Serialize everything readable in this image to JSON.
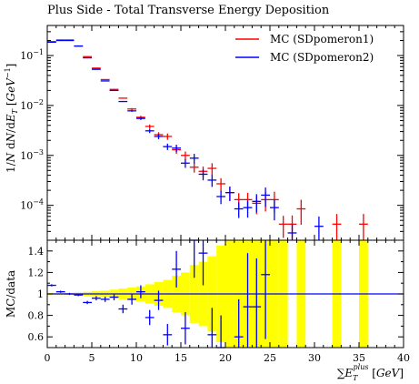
{
  "chart_data": [
    {
      "type": "scatter",
      "title": "Plus Side - Total Transverse Energy Deposition",
      "ylabel": "1/N dN/dE_T [GeV^-1]",
      "ylabel_parts": [
        "1/",
        "N",
        " d",
        "N",
        "/d",
        "E",
        "T",
        " [",
        "GeV",
        "−1",
        "]"
      ],
      "yscale": "log",
      "ylim": [
        2e-05,
        0.4
      ],
      "xlim": [
        0,
        40
      ],
      "ytick_labels": [
        {
          "value": 0.1,
          "base": "10",
          "exp": "−1"
        },
        {
          "value": 0.01,
          "base": "10",
          "exp": "−2"
        },
        {
          "value": 0.001,
          "base": "10",
          "exp": "−3"
        },
        {
          "value": 0.0001,
          "base": "10",
          "exp": "−4"
        }
      ],
      "legend_position": "top-right",
      "series": [
        {
          "name": "MC (SDpomeron1)",
          "color": "#ff0000",
          "points": [
            {
              "xlo": 0,
              "xhi": 1,
              "y": 0.19
            },
            {
              "xlo": 1,
              "xhi": 2,
              "y": 0.205
            },
            {
              "xlo": 2,
              "xhi": 3,
              "y": 0.205
            },
            {
              "xlo": 3,
              "xhi": 4,
              "y": 0.155
            },
            {
              "xlo": 4,
              "xhi": 5,
              "y": 0.095
            },
            {
              "xlo": 5,
              "xhi": 6,
              "y": 0.056
            },
            {
              "xlo": 6,
              "xhi": 7,
              "y": 0.033
            },
            {
              "xlo": 7,
              "xhi": 8,
              "y": 0.021
            },
            {
              "xlo": 8,
              "xhi": 9,
              "y": 0.014
            },
            {
              "xlo": 9,
              "xhi": 10,
              "y": 0.0085
            },
            {
              "xlo": 10,
              "xhi": 11,
              "y": 0.0058
            },
            {
              "xlo": 11,
              "xhi": 12,
              "y": 0.0038
            },
            {
              "xlo": 12,
              "xhi": 13,
              "y": 0.0026
            },
            {
              "xlo": 13,
              "xhi": 14,
              "y": 0.0024
            },
            {
              "xlo": 14,
              "xhi": 15,
              "y": 0.0013
            },
            {
              "xlo": 15,
              "xhi": 16,
              "y": 0.001
            },
            {
              "xlo": 16,
              "xhi": 17,
              "y": 0.00058
            },
            {
              "xlo": 17,
              "xhi": 18,
              "y": 0.00048
            },
            {
              "xlo": 18,
              "xhi": 19,
              "y": 0.00055
            },
            {
              "xlo": 19,
              "xhi": 20,
              "y": 0.00027
            },
            {
              "xlo": 20,
              "xhi": 21,
              "y": 0.00018
            },
            {
              "xlo": 21,
              "xhi": 22,
              "y": 0.00013
            },
            {
              "xlo": 22,
              "xhi": 23,
              "y": 0.00013
            },
            {
              "xlo": 23,
              "xhi": 24,
              "y": 0.00011
            },
            {
              "xlo": 24,
              "xhi": 25,
              "y": 0.00013
            },
            {
              "xlo": 25,
              "xhi": 26,
              "y": 0.00013
            },
            {
              "xlo": 26,
              "xhi": 27,
              "y": 4.2e-05
            },
            {
              "xlo": 27,
              "xhi": 28,
              "y": 4.2e-05
            },
            {
              "xlo": 28,
              "xhi": 29,
              "y": 8.5e-05
            },
            {
              "xlo": 32,
              "xhi": 33,
              "y": 4.2e-05
            },
            {
              "xlo": 35,
              "xhi": 36,
              "y": 4.2e-05
            }
          ]
        },
        {
          "name": "MC (SDpomeron2)",
          "color": "#0000ff",
          "points": [
            {
              "xlo": 0,
              "xhi": 1,
              "y": 0.185
            },
            {
              "xlo": 1,
              "xhi": 2,
              "y": 0.2
            },
            {
              "xlo": 2,
              "xhi": 3,
              "y": 0.2
            },
            {
              "xlo": 3,
              "xhi": 4,
              "y": 0.155
            },
            {
              "xlo": 4,
              "xhi": 5,
              "y": 0.09
            },
            {
              "xlo": 5,
              "xhi": 6,
              "y": 0.053
            },
            {
              "xlo": 6,
              "xhi": 7,
              "y": 0.031
            },
            {
              "xlo": 7,
              "xhi": 8,
              "y": 0.02
            },
            {
              "xlo": 8,
              "xhi": 9,
              "y": 0.012
            },
            {
              "xlo": 9,
              "xhi": 10,
              "y": 0.0078
            },
            {
              "xlo": 10,
              "xhi": 11,
              "y": 0.0055
            },
            {
              "xlo": 11,
              "xhi": 12,
              "y": 0.0031
            },
            {
              "xlo": 12,
              "xhi": 13,
              "y": 0.0024
            },
            {
              "xlo": 13,
              "xhi": 14,
              "y": 0.0015
            },
            {
              "xlo": 14,
              "xhi": 15,
              "y": 0.0014
            },
            {
              "xlo": 15,
              "xhi": 16,
              "y": 0.0007
            },
            {
              "xlo": 16,
              "xhi": 17,
              "y": 0.00088
            },
            {
              "xlo": 17,
              "xhi": 18,
              "y": 0.00042
            },
            {
              "xlo": 18,
              "xhi": 19,
              "y": 0.00032
            },
            {
              "xlo": 19,
              "xhi": 20,
              "y": 0.00015
            },
            {
              "xlo": 20,
              "xhi": 21,
              "y": 0.00018
            },
            {
              "xlo": 21,
              "xhi": 22,
              "y": 8.5e-05
            },
            {
              "xlo": 22,
              "xhi": 23,
              "y": 9e-05
            },
            {
              "xlo": 23,
              "xhi": 24,
              "y": 0.00012
            },
            {
              "xlo": 24,
              "xhi": 25,
              "y": 0.00016
            },
            {
              "xlo": 25,
              "xhi": 26,
              "y": 9e-05
            },
            {
              "xlo": 27,
              "xhi": 28,
              "y": 2.8e-05
            },
            {
              "xlo": 30,
              "xhi": 31,
              "y": 3.8e-05
            }
          ]
        }
      ]
    },
    {
      "type": "scatter",
      "ylabel": "MC/data",
      "xlabel": "∑E_T^plus [GeV]",
      "xlabel_parts": [
        "∑",
        "E",
        "T",
        "plus",
        " [",
        "GeV",
        "]"
      ],
      "xlim": [
        0,
        40
      ],
      "ylim": [
        0.5,
        1.5
      ],
      "xticks": [
        0,
        5,
        10,
        15,
        20,
        25,
        30,
        35,
        40
      ],
      "yticks": [
        0.6,
        0.8,
        1,
        1.2,
        1.4
      ],
      "ytick_labels": [
        "0.6",
        "0.8",
        "1",
        "1.2",
        "1.4"
      ],
      "reference_line": 1,
      "uncertainty_band": {
        "color": "#ffff00",
        "bins": [
          {
            "xlo": 0,
            "xhi": 1,
            "hw": 0.01
          },
          {
            "xlo": 1,
            "xhi": 2,
            "hw": 0.01
          },
          {
            "xlo": 2,
            "xhi": 3,
            "hw": 0.01
          },
          {
            "xlo": 3,
            "xhi": 4,
            "hw": 0.015
          },
          {
            "xlo": 4,
            "xhi": 5,
            "hw": 0.02
          },
          {
            "xlo": 5,
            "xhi": 6,
            "hw": 0.025
          },
          {
            "xlo": 6,
            "xhi": 7,
            "hw": 0.03
          },
          {
            "xlo": 7,
            "xhi": 8,
            "hw": 0.04
          },
          {
            "xlo": 8,
            "xhi": 9,
            "hw": 0.05
          },
          {
            "xlo": 9,
            "xhi": 10,
            "hw": 0.06
          },
          {
            "xlo": 10,
            "xhi": 11,
            "hw": 0.07
          },
          {
            "xlo": 11,
            "xhi": 12,
            "hw": 0.09
          },
          {
            "xlo": 12,
            "xhi": 13,
            "hw": 0.11
          },
          {
            "xlo": 13,
            "xhi": 14,
            "hw": 0.13
          },
          {
            "xlo": 14,
            "xhi": 15,
            "hw": 0.17
          },
          {
            "xlo": 15,
            "xhi": 16,
            "hw": 0.2
          },
          {
            "xlo": 16,
            "xhi": 17,
            "hw": 0.27
          },
          {
            "xlo": 17,
            "xhi": 18,
            "hw": 0.3
          },
          {
            "xlo": 18,
            "xhi": 19,
            "hw": 0.35
          },
          {
            "xlo": 19,
            "xhi": 20,
            "hw": 0.45
          },
          {
            "xlo": 20,
            "xhi": 21,
            "hw": 0.5
          },
          {
            "xlo": 21,
            "xhi": 22,
            "hw": 0.55
          },
          {
            "xlo": 22,
            "xhi": 23,
            "hw": 0.6
          },
          {
            "xlo": 23,
            "xhi": 24,
            "hw": 0.6
          },
          {
            "xlo": 24,
            "xhi": 25,
            "hw": 0.6
          },
          {
            "xlo": 25,
            "xhi": 26,
            "hw": 0.6
          },
          {
            "xlo": 26,
            "xhi": 27,
            "hw": 0.6
          },
          {
            "xlo": 28,
            "xhi": 29,
            "hw": 0.6
          },
          {
            "xlo": 32,
            "xhi": 33,
            "hw": 0.6
          },
          {
            "xlo": 35,
            "xhi": 36,
            "hw": 0.6
          }
        ]
      },
      "series": [
        {
          "name": "MC (SDpomeron2)",
          "color": "#0000ff",
          "points": [
            {
              "x": 0.5,
              "y": 1.08,
              "yerr": 0.01
            },
            {
              "x": 1.5,
              "y": 1.02,
              "yerr": 0.01
            },
            {
              "x": 2.5,
              "y": 1.0,
              "yerr": 0.01
            },
            {
              "x": 3.5,
              "y": 0.99,
              "yerr": 0.01
            },
            {
              "x": 4.5,
              "y": 0.92,
              "yerr": 0.015
            },
            {
              "x": 5.5,
              "y": 0.96,
              "yerr": 0.02
            },
            {
              "x": 6.5,
              "y": 0.95,
              "yerr": 0.025
            },
            {
              "x": 7.5,
              "y": 0.97,
              "yerr": 0.03
            },
            {
              "x": 8.5,
              "y": 0.86,
              "yerr": 0.04
            },
            {
              "x": 9.5,
              "y": 0.95,
              "yerr": 0.05
            },
            {
              "x": 10.5,
              "y": 1.02,
              "yerr": 0.06
            },
            {
              "x": 11.5,
              "y": 0.78,
              "yerr": 0.07
            },
            {
              "x": 12.5,
              "y": 0.94,
              "yerr": 0.09
            },
            {
              "x": 13.5,
              "y": 0.62,
              "yerr": 0.1
            },
            {
              "x": 14.5,
              "y": 1.23,
              "yerr": 0.17
            },
            {
              "x": 15.5,
              "y": 0.68,
              "yerr": 0.15
            },
            {
              "x": 16.5,
              "y": 1.5,
              "yerr": 0.35
            },
            {
              "x": 17.5,
              "y": 1.38,
              "yerr": 0.3
            },
            {
              "x": 18.5,
              "y": 0.62,
              "yerr": 0.25
            },
            {
              "x": 19.5,
              "y": 0.5,
              "yerr": 0.3
            },
            {
              "x": 21.5,
              "y": 0.6,
              "yerr": 0.35
            },
            {
              "x": 22.5,
              "y": 0.88,
              "yerr": 0.5
            },
            {
              "x": 23.5,
              "y": 0.88,
              "yerr": 0.45
            },
            {
              "x": 24.5,
              "y": 1.18,
              "yerr": 0.6
            }
          ]
        }
      ]
    }
  ]
}
